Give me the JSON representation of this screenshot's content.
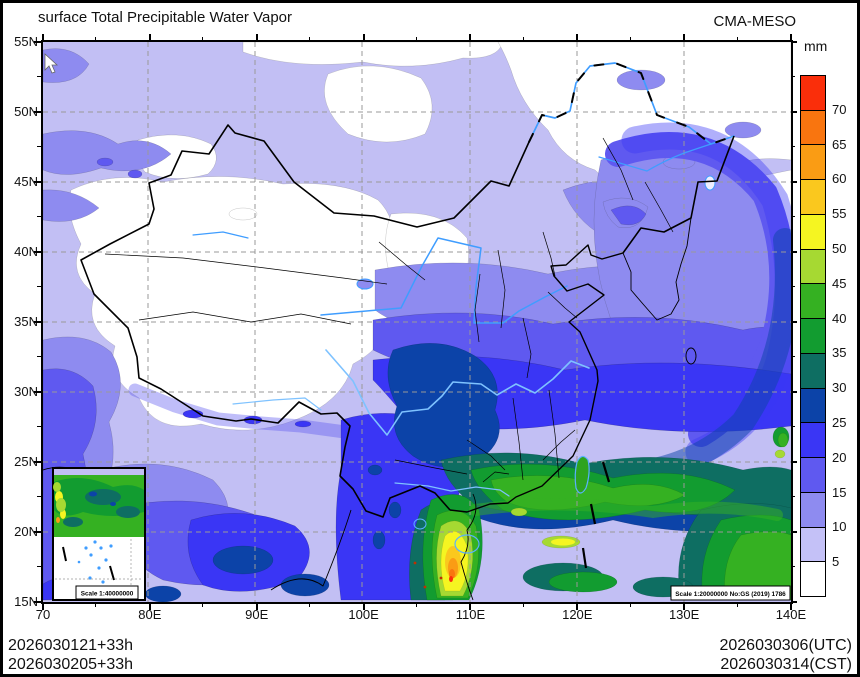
{
  "header": {
    "title": "surface Total Precipitable Water Vapor",
    "model": "CMA-MESO"
  },
  "colorbar": {
    "unit": "mm",
    "tick_labels_top_to_bottom": [
      "70",
      "65",
      "60",
      "55",
      "50",
      "45",
      "40",
      "35",
      "30",
      "25",
      "20",
      "15",
      "10",
      "5"
    ],
    "colors_top_to_bottom": [
      "#fa2e0a",
      "#f9750f",
      "#fa9c14",
      "#fac81e",
      "#f5f521",
      "#a6d932",
      "#35b122",
      "#129c30",
      "#0e6e62",
      "#0c43a8",
      "#3a36f5",
      "#5f59f0",
      "#8e8bf0",
      "#c4c1f7",
      "#ffffff"
    ]
  },
  "axes": {
    "lat_labels": [
      "55N",
      "50N",
      "45N",
      "40N",
      "35N",
      "30N",
      "25N",
      "20N",
      "15N"
    ],
    "lon_labels": [
      "70",
      "80E",
      "90E",
      "100E",
      "110E",
      "120E",
      "130E",
      "140E"
    ]
  },
  "map": {
    "scale_main": "Scale 1:20000000 No:GS (2019) 1786",
    "scale_inset": "Scale 1:40000000"
  },
  "footer": {
    "init_line1": "2026030121+33h",
    "init_line2": "2026030205+33h",
    "valid_line1": "2026030306(UTC)",
    "valid_line2": "2026030314(CST)"
  },
  "chart_data": {
    "type": "heatmap",
    "subtype": "filled_contour_weather_map",
    "title": "surface Total Precipitable Water Vapor",
    "model": "CMA-MESO",
    "unit": "mm",
    "xlabel": "longitude (70E-140E)",
    "ylabel": "latitude (15N-55N)",
    "lon_range": [
      70,
      140
    ],
    "lat_range": [
      15,
      55
    ],
    "graticule": "dashed grid every 10 deg lon, 5 deg lat",
    "legend_position": "right colorbar",
    "contour_levels_mm": [
      5,
      10,
      15,
      20,
      25,
      30,
      35,
      40,
      45,
      50,
      55,
      60,
      65,
      70
    ],
    "palette_low_to_high": [
      "#ffffff",
      "#c4c1f7",
      "#8e8bf0",
      "#5f59f0",
      "#3a36f5",
      "#0c43a8",
      "#0e6e62",
      "#129c30",
      "#35b122",
      "#a6d932",
      "#f5f521",
      "#fac81e",
      "#fa9c14",
      "#f9750f",
      "#fa2e0a"
    ],
    "features": [
      {
        "region": "Tibetan Plateau and Tarim Basin (75-100E, 28-42N)",
        "value_mm": "<5"
      },
      {
        "region": "Northeast China plains (120-135E, 43-55N)",
        "value_mm": "<5 to 10"
      },
      {
        "region": "North China / Mongolia border belt (95-125E, 38-52N)",
        "value_mm": "5-15"
      },
      {
        "region": "Yangtze belt central China (100-122E, 28-34N)",
        "value_mm": "15-25"
      },
      {
        "region": "Sichuan-Chongqing dark-blue core (102-110E, 26-32N)",
        "value_mm": "25-30"
      },
      {
        "region": "South China green belt (105-122E, 18-26N)",
        "value_mm": "30-45"
      },
      {
        "region": "Vietnam/Indochina local maximum (102-110E, 15-20N)",
        "value_mm": "45-70+"
      },
      {
        "region": "Western Pacific comma-shaped vortex band (125-140E, 20-40N)",
        "value_mm": "15-35"
      },
      {
        "region": "Philippine Sea far SE corner (130-140E, 15-25N)",
        "value_mm": "35-50"
      },
      {
        "region": "Bay of Bengal sector (80-100E, 15-25N)",
        "value_mm": "15-30"
      }
    ]
  }
}
